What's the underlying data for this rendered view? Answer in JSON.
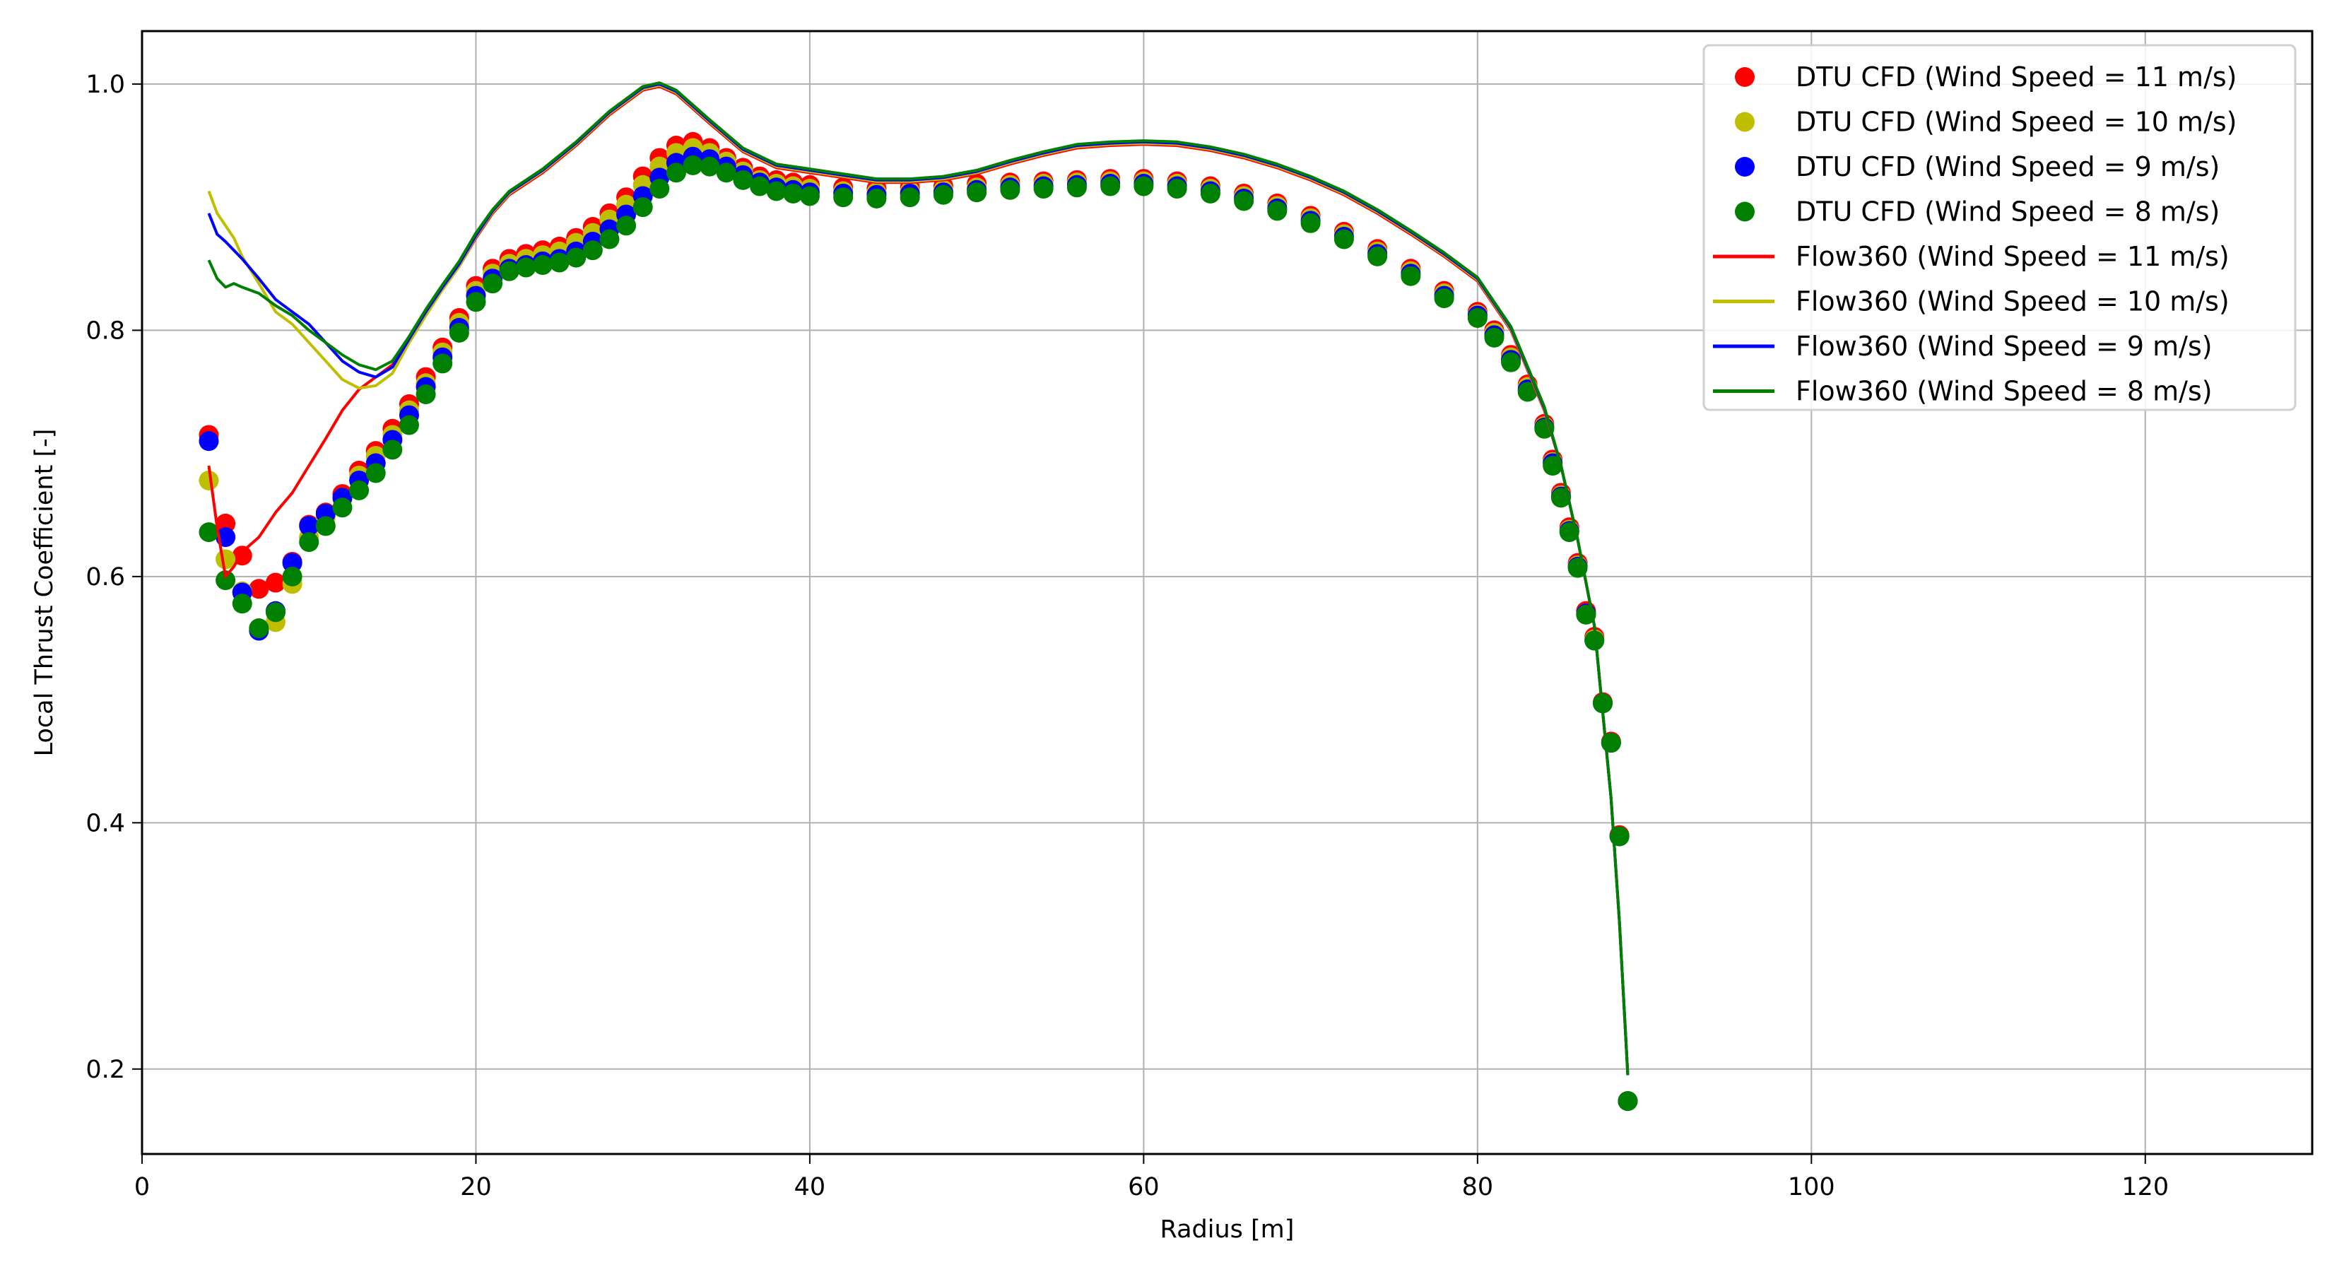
{
  "chart_data": {
    "type": "scatter",
    "title": "",
    "xlabel": "Radius [m]",
    "ylabel": "Local Thrust Coefficient [-]",
    "xlim": [
      0,
      130
    ],
    "ylim": [
      0.131,
      1.043
    ],
    "xticks": [
      0,
      20,
      40,
      60,
      80,
      100,
      120
    ],
    "yticks": [
      0.2,
      0.4,
      0.6,
      0.8,
      1.0
    ],
    "xtick_labels": [
      "0",
      "20",
      "40",
      "60",
      "80",
      "100",
      "120"
    ],
    "ytick_labels": [
      "0.2",
      "0.4",
      "0.6",
      "0.8",
      "1.0"
    ],
    "grid": true,
    "legend_position": "upper right",
    "series": [
      {
        "name": "DTU CFD (Wind Speed = 11 m/s)",
        "kind": "marker",
        "color": "#ff0000",
        "x": [
          4,
          5,
          6,
          7,
          8,
          9,
          10,
          11,
          12,
          13,
          14,
          15,
          16,
          17,
          18,
          19,
          20,
          21,
          22,
          23,
          24,
          25,
          26,
          27,
          28,
          29,
          30,
          31,
          32,
          33,
          34,
          35,
          36,
          37,
          38,
          39,
          40,
          42,
          44,
          46,
          48,
          50,
          52,
          54,
          56,
          58,
          60,
          62,
          64,
          66,
          68,
          70,
          72,
          74,
          76,
          78,
          80,
          81,
          82,
          83,
          84,
          84.5,
          85,
          85.5,
          86,
          86.5,
          87,
          87.5,
          88,
          88.5,
          89
        ],
        "y": [
          0.715,
          0.643,
          0.617,
          0.59,
          0.595,
          0.612,
          0.642,
          0.652,
          0.667,
          0.686,
          0.702,
          0.72,
          0.74,
          0.762,
          0.786,
          0.81,
          0.836,
          0.85,
          0.858,
          0.862,
          0.865,
          0.868,
          0.875,
          0.884,
          0.895,
          0.908,
          0.925,
          0.94,
          0.95,
          0.953,
          0.948,
          0.94,
          0.932,
          0.925,
          0.922,
          0.92,
          0.918,
          0.916,
          0.915,
          0.916,
          0.917,
          0.919,
          0.92,
          0.921,
          0.922,
          0.923,
          0.923,
          0.921,
          0.917,
          0.911,
          0.903,
          0.893,
          0.88,
          0.866,
          0.85,
          0.832,
          0.815,
          0.8,
          0.78,
          0.756,
          0.724,
          0.695,
          0.668,
          0.64,
          0.611,
          0.572,
          0.551,
          0.498,
          0.466,
          0.39,
          0.174
        ]
      },
      {
        "name": "DTU CFD (Wind Speed = 10 m/s)",
        "kind": "marker",
        "color": "#bfbf00",
        "x": [
          4,
          5,
          6,
          7,
          8,
          9,
          10,
          11,
          12,
          13,
          14,
          15,
          16,
          17,
          18,
          19,
          20,
          21,
          22,
          23,
          24,
          25,
          26,
          27,
          28,
          29,
          30,
          31,
          32,
          33,
          34,
          35,
          36,
          37,
          38,
          39,
          40,
          42,
          44,
          46,
          48,
          50,
          52,
          54,
          56,
          58,
          60,
          62,
          64,
          66,
          68,
          70,
          72,
          74,
          76,
          78,
          80,
          81,
          82,
          83,
          84,
          84.5,
          85,
          85.5,
          86,
          86.5,
          87,
          87.5,
          88,
          88.5,
          89
        ],
        "y": [
          0.678,
          0.614,
          0.588,
          0.557,
          0.563,
          0.594,
          0.632,
          0.648,
          0.663,
          0.682,
          0.698,
          0.715,
          0.735,
          0.757,
          0.782,
          0.806,
          0.832,
          0.846,
          0.854,
          0.858,
          0.861,
          0.864,
          0.871,
          0.879,
          0.89,
          0.902,
          0.918,
          0.933,
          0.944,
          0.948,
          0.944,
          0.937,
          0.929,
          0.922,
          0.919,
          0.917,
          0.915,
          0.913,
          0.912,
          0.913,
          0.914,
          0.916,
          0.918,
          0.919,
          0.92,
          0.921,
          0.921,
          0.919,
          0.915,
          0.909,
          0.901,
          0.891,
          0.878,
          0.864,
          0.848,
          0.83,
          0.813,
          0.798,
          0.778,
          0.754,
          0.722,
          0.693,
          0.666,
          0.638,
          0.609,
          0.57,
          0.549,
          0.497,
          0.465,
          0.389,
          0.174
        ]
      },
      {
        "name": "DTU CFD (Wind Speed = 9 m/s)",
        "kind": "marker",
        "color": "#0000ff",
        "x": [
          4,
          5,
          6,
          7,
          8,
          9,
          10,
          11,
          12,
          13,
          14,
          15,
          16,
          17,
          18,
          19,
          20,
          21,
          22,
          23,
          24,
          25,
          26,
          27,
          28,
          29,
          30,
          31,
          32,
          33,
          34,
          35,
          36,
          37,
          38,
          39,
          40,
          42,
          44,
          46,
          48,
          50,
          52,
          54,
          56,
          58,
          60,
          62,
          64,
          66,
          68,
          70,
          72,
          74,
          76,
          78,
          80,
          81,
          82,
          83,
          84,
          84.5,
          85,
          85.5,
          86,
          86.5,
          87,
          87.5,
          88,
          88.5,
          89
        ],
        "y": [
          0.71,
          0.632,
          0.587,
          0.556,
          0.572,
          0.611,
          0.641,
          0.651,
          0.664,
          0.678,
          0.692,
          0.711,
          0.731,
          0.754,
          0.778,
          0.802,
          0.828,
          0.842,
          0.85,
          0.853,
          0.856,
          0.858,
          0.864,
          0.872,
          0.882,
          0.894,
          0.909,
          0.924,
          0.936,
          0.941,
          0.939,
          0.933,
          0.926,
          0.92,
          0.916,
          0.914,
          0.912,
          0.911,
          0.91,
          0.911,
          0.912,
          0.914,
          0.916,
          0.917,
          0.918,
          0.919,
          0.919,
          0.917,
          0.913,
          0.907,
          0.899,
          0.889,
          0.876,
          0.862,
          0.846,
          0.828,
          0.812,
          0.796,
          0.776,
          0.752,
          0.721,
          0.692,
          0.665,
          0.637,
          0.608,
          0.57,
          0.548,
          0.497,
          0.465,
          0.389,
          0.174
        ]
      },
      {
        "name": "DTU CFD (Wind Speed = 8 m/s)",
        "kind": "marker",
        "color": "#008000",
        "x": [
          4,
          5,
          6,
          7,
          8,
          9,
          10,
          11,
          12,
          13,
          14,
          15,
          16,
          17,
          18,
          19,
          20,
          21,
          22,
          23,
          24,
          25,
          26,
          27,
          28,
          29,
          30,
          31,
          32,
          33,
          34,
          35,
          36,
          37,
          38,
          39,
          40,
          42,
          44,
          46,
          48,
          50,
          52,
          54,
          56,
          58,
          60,
          62,
          64,
          66,
          68,
          70,
          72,
          74,
          76,
          78,
          80,
          81,
          82,
          83,
          84,
          84.5,
          85,
          85.5,
          86,
          86.5,
          87,
          87.5,
          88,
          88.5,
          89
        ],
        "y": [
          0.636,
          0.597,
          0.578,
          0.558,
          0.571,
          0.6,
          0.628,
          0.641,
          0.656,
          0.67,
          0.684,
          0.703,
          0.723,
          0.748,
          0.773,
          0.798,
          0.823,
          0.838,
          0.848,
          0.851,
          0.853,
          0.855,
          0.859,
          0.865,
          0.874,
          0.885,
          0.9,
          0.915,
          0.928,
          0.934,
          0.933,
          0.928,
          0.922,
          0.917,
          0.913,
          0.911,
          0.909,
          0.908,
          0.907,
          0.908,
          0.91,
          0.912,
          0.914,
          0.915,
          0.916,
          0.917,
          0.917,
          0.915,
          0.911,
          0.905,
          0.897,
          0.887,
          0.874,
          0.86,
          0.844,
          0.826,
          0.81,
          0.794,
          0.774,
          0.75,
          0.72,
          0.69,
          0.664,
          0.636,
          0.607,
          0.569,
          0.548,
          0.497,
          0.465,
          0.389,
          0.174
        ]
      },
      {
        "name": "Flow360 (Wind Speed = 11 m/s)",
        "kind": "line",
        "color": "#ff0000",
        "x": [
          4,
          4.5,
          5,
          5.5,
          6,
          7,
          8,
          9,
          10,
          11,
          12,
          13,
          14,
          15,
          16,
          17,
          18,
          19,
          20,
          21,
          22,
          24,
          26,
          28,
          30,
          31,
          32,
          34,
          36,
          38,
          40,
          42,
          44,
          46,
          48,
          50,
          52,
          54,
          56,
          58,
          60,
          62,
          64,
          66,
          68,
          70,
          72,
          74,
          76,
          78,
          80,
          82,
          84,
          85,
          86,
          87,
          88,
          88.5,
          89
        ],
        "y": [
          0.69,
          0.64,
          0.6,
          0.608,
          0.62,
          0.632,
          0.652,
          0.668,
          0.69,
          0.712,
          0.735,
          0.752,
          0.762,
          0.772,
          0.795,
          0.815,
          0.833,
          0.852,
          0.875,
          0.895,
          0.91,
          0.928,
          0.95,
          0.975,
          0.995,
          0.998,
          0.992,
          0.968,
          0.945,
          0.932,
          0.928,
          0.924,
          0.92,
          0.92,
          0.922,
          0.927,
          0.935,
          0.942,
          0.948,
          0.95,
          0.951,
          0.95,
          0.946,
          0.94,
          0.932,
          0.922,
          0.91,
          0.895,
          0.878,
          0.86,
          0.84,
          0.8,
          0.735,
          0.69,
          0.63,
          0.56,
          0.42,
          0.32,
          0.195
        ]
      },
      {
        "name": "Flow360 (Wind Speed = 10 m/s)",
        "kind": "line",
        "color": "#bfbf00",
        "x": [
          4,
          4.5,
          5,
          5.5,
          6,
          7,
          8,
          9,
          10,
          11,
          12,
          13,
          14,
          15,
          16,
          17,
          18,
          19,
          20,
          21,
          22,
          24,
          26,
          28,
          30,
          31,
          32,
          34,
          36,
          38,
          40,
          42,
          44,
          46,
          48,
          50,
          52,
          54,
          56,
          58,
          60,
          62,
          64,
          66,
          68,
          70,
          72,
          74,
          76,
          78,
          80,
          82,
          84,
          85,
          86,
          87,
          88,
          88.5,
          89
        ],
        "y": [
          0.913,
          0.895,
          0.885,
          0.875,
          0.86,
          0.838,
          0.815,
          0.805,
          0.79,
          0.775,
          0.76,
          0.753,
          0.755,
          0.765,
          0.79,
          0.812,
          0.833,
          0.852,
          0.876,
          0.896,
          0.911,
          0.929,
          0.951,
          0.976,
          0.996,
          0.999,
          0.993,
          0.969,
          0.946,
          0.933,
          0.929,
          0.925,
          0.921,
          0.921,
          0.923,
          0.928,
          0.936,
          0.943,
          0.949,
          0.951,
          0.952,
          0.951,
          0.947,
          0.941,
          0.933,
          0.923,
          0.911,
          0.896,
          0.879,
          0.861,
          0.841,
          0.801,
          0.736,
          0.69,
          0.63,
          0.56,
          0.42,
          0.32,
          0.195
        ]
      },
      {
        "name": "Flow360 (Wind Speed = 9 m/s)",
        "kind": "line",
        "color": "#0000ff",
        "x": [
          4,
          4.5,
          5,
          5.5,
          6,
          7,
          8,
          9,
          10,
          11,
          12,
          13,
          14,
          15,
          16,
          17,
          18,
          19,
          20,
          21,
          22,
          24,
          26,
          28,
          30,
          31,
          32,
          34,
          36,
          38,
          40,
          42,
          44,
          46,
          48,
          50,
          52,
          54,
          56,
          58,
          60,
          62,
          64,
          66,
          68,
          70,
          72,
          74,
          76,
          78,
          80,
          82,
          84,
          85,
          86,
          87,
          88,
          88.5,
          89
        ],
        "y": [
          0.895,
          0.878,
          0.872,
          0.865,
          0.858,
          0.842,
          0.825,
          0.815,
          0.805,
          0.79,
          0.775,
          0.766,
          0.762,
          0.77,
          0.793,
          0.815,
          0.835,
          0.854,
          0.877,
          0.897,
          0.912,
          0.93,
          0.952,
          0.977,
          0.997,
          1.0,
          0.994,
          0.97,
          0.947,
          0.934,
          0.93,
          0.926,
          0.922,
          0.922,
          0.924,
          0.929,
          0.937,
          0.944,
          0.95,
          0.952,
          0.953,
          0.952,
          0.948,
          0.942,
          0.934,
          0.924,
          0.912,
          0.897,
          0.88,
          0.862,
          0.842,
          0.802,
          0.737,
          0.69,
          0.63,
          0.56,
          0.42,
          0.32,
          0.195
        ]
      },
      {
        "name": "Flow360 (Wind Speed = 8 m/s)",
        "kind": "line",
        "color": "#008000",
        "x": [
          4,
          4.5,
          5,
          5.5,
          6,
          7,
          8,
          9,
          10,
          11,
          12,
          13,
          14,
          15,
          16,
          17,
          18,
          19,
          20,
          21,
          22,
          24,
          26,
          28,
          30,
          31,
          32,
          34,
          36,
          38,
          40,
          42,
          44,
          46,
          48,
          50,
          52,
          54,
          56,
          58,
          60,
          62,
          64,
          66,
          68,
          70,
          72,
          74,
          76,
          78,
          80,
          82,
          84,
          85,
          86,
          87,
          88,
          88.5,
          89
        ],
        "y": [
          0.857,
          0.842,
          0.835,
          0.838,
          0.835,
          0.83,
          0.82,
          0.812,
          0.8,
          0.79,
          0.78,
          0.772,
          0.768,
          0.775,
          0.795,
          0.817,
          0.837,
          0.856,
          0.879,
          0.898,
          0.913,
          0.931,
          0.953,
          0.978,
          0.998,
          1.001,
          0.995,
          0.971,
          0.948,
          0.935,
          0.931,
          0.927,
          0.923,
          0.923,
          0.925,
          0.93,
          0.938,
          0.945,
          0.951,
          0.953,
          0.954,
          0.953,
          0.949,
          0.943,
          0.935,
          0.925,
          0.913,
          0.898,
          0.881,
          0.863,
          0.843,
          0.803,
          0.738,
          0.69,
          0.63,
          0.56,
          0.42,
          0.32,
          0.195
        ]
      }
    ]
  }
}
